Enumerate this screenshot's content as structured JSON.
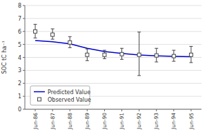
{
  "chart_data": {
    "type": "line",
    "categories": [
      "Jun-86",
      "Jun-87",
      "Jun-88",
      "Jun-89",
      "Jun-90",
      "Jun-91",
      "Jun-92",
      "Jun-93",
      "Jun-94",
      "Jun-95"
    ],
    "series": [
      {
        "name": "Predicted Value",
        "type": "line",
        "color": "#0000cc",
        "line_style": "solid",
        "values": [
          5.3,
          5.2,
          5.05,
          4.7,
          4.45,
          4.3,
          4.18,
          4.12,
          4.08,
          4.05
        ]
      },
      {
        "name": "Observed Value",
        "type": "scatter",
        "color": "#444444",
        "marker": "square",
        "values": [
          6.0,
          5.75,
          5.15,
          4.2,
          4.2,
          4.25,
          4.2,
          4.15,
          4.1,
          4.2
        ],
        "error_upper": [
          0.55,
          0.45,
          0.45,
          0.45,
          0.35,
          0.45,
          1.75,
          0.55,
          0.45,
          0.65
        ],
        "error_lower": [
          0.5,
          0.35,
          0.4,
          0.45,
          0.3,
          0.4,
          1.6,
          0.5,
          0.4,
          0.6
        ]
      }
    ],
    "ylabel": "SOC tC ha⁻¹",
    "ylim": [
      0,
      8
    ],
    "yticks": [
      0,
      1,
      2,
      3,
      4,
      5,
      6,
      7,
      8
    ],
    "grid": true,
    "legend": "lower left"
  }
}
